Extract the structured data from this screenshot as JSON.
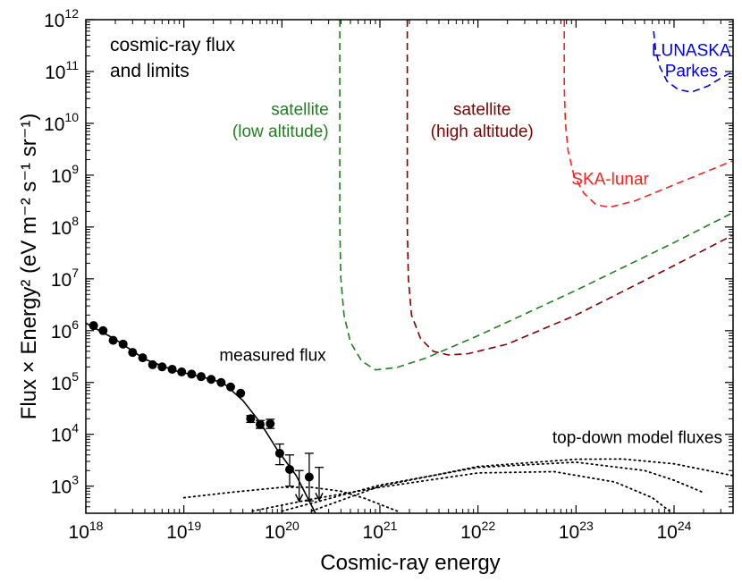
{
  "chart_data": {
    "type": "line",
    "title": "cosmic-ray flux and limits",
    "title_lines": [
      "cosmic-ray flux",
      "and limits"
    ],
    "xlabel": "Cosmic-ray energy",
    "ylabel": "Flux × Energy² (eV m⁻² s⁻¹ sr⁻¹)",
    "x_scale": "log",
    "y_scale": "log",
    "xlim": [
      1e+18,
      4e+24
    ],
    "ylim": [
      300,
      1000000000000.0
    ],
    "x_ticks": [
      {
        "base": "10",
        "exp": "18",
        "value": 1e+18
      },
      {
        "base": "10",
        "exp": "19",
        "value": 1e+19
      },
      {
        "base": "10",
        "exp": "20",
        "value": 1e+20
      },
      {
        "base": "10",
        "exp": "21",
        "value": 1e+21
      },
      {
        "base": "10",
        "exp": "22",
        "value": 1e+22
      },
      {
        "base": "10",
        "exp": "23",
        "value": 1e+23
      },
      {
        "base": "10",
        "exp": "24",
        "value": 1e+24
      }
    ],
    "y_ticks": [
      {
        "base": "10",
        "exp": "3",
        "value": 1000.0
      },
      {
        "base": "10",
        "exp": "4",
        "value": 10000.0
      },
      {
        "base": "10",
        "exp": "5",
        "value": 100000.0
      },
      {
        "base": "10",
        "exp": "6",
        "value": 1000000.0
      },
      {
        "base": "10",
        "exp": "7",
        "value": 10000000.0
      },
      {
        "base": "10",
        "exp": "8",
        "value": 100000000.0
      },
      {
        "base": "10",
        "exp": "9",
        "value": 1000000000.0
      },
      {
        "base": "10",
        "exp": "10",
        "value": 10000000000.0
      },
      {
        "base": "10",
        "exp": "11",
        "value": 100000000000.0
      },
      {
        "base": "10",
        "exp": "12",
        "value": 1000000000000.0
      }
    ],
    "measured_flux": {
      "name": "measured flux",
      "color": "#000000",
      "points": [
        {
          "x": 1.2e+18,
          "y": 1250000.0
        },
        {
          "x": 1.5e+18,
          "y": 1000000.0
        },
        {
          "x": 1.9e+18,
          "y": 650000.0
        },
        {
          "x": 2.4e+18,
          "y": 550000.0
        },
        {
          "x": 3e+18,
          "y": 380000.0
        },
        {
          "x": 3.8e+18,
          "y": 300000.0
        },
        {
          "x": 4.8e+18,
          "y": 220000.0
        },
        {
          "x": 6e+18,
          "y": 200000.0
        },
        {
          "x": 7.6e+18,
          "y": 180000.0
        },
        {
          "x": 9.5e+18,
          "y": 160000.0
        },
        {
          "x": 1.2e+19,
          "y": 145000.0
        },
        {
          "x": 1.5e+19,
          "y": 130000.0
        },
        {
          "x": 1.9e+19,
          "y": 115000.0
        },
        {
          "x": 2.4e+19,
          "y": 100000.0
        },
        {
          "x": 3e+19,
          "y": 82000.0
        },
        {
          "x": 3.8e+19,
          "y": 62000.0
        },
        {
          "x": 4.8e+19,
          "y": 20000.0,
          "err_low": 17000.0,
          "err_high": 23000.0
        },
        {
          "x": 6e+19,
          "y": 15500.0,
          "err_low": 13000.0,
          "err_high": 18500.0
        },
        {
          "x": 7.6e+19,
          "y": 16000.0,
          "err_low": 13000.0,
          "err_high": 19500.0
        },
        {
          "x": 9.5e+19,
          "y": 4300.0,
          "err_low": 2600.0,
          "err_high": 6500.0
        },
        {
          "x": 1.2e+20,
          "y": 2100.0,
          "err_low": 1000.0,
          "err_high": 4000.0
        },
        {
          "x": 1.9e+20,
          "y": 1500.0,
          "err_low": 520,
          "err_high": 4300.0
        }
      ],
      "upper_limits": [
        {
          "x": 1.5e+20,
          "y": 2000.0,
          "y_end": 530
        },
        {
          "x": 2.4e+20,
          "y": 2300.0,
          "y_end": 560
        }
      ],
      "fit": [
        {
          "x": 1e+18,
          "y": 1400000.0
        },
        {
          "x": 2e+18,
          "y": 680000.0
        },
        {
          "x": 4e+18,
          "y": 280000.0
        },
        {
          "x": 8e+18,
          "y": 170000.0
        },
        {
          "x": 1.6e+19,
          "y": 125000.0
        },
        {
          "x": 2.5e+19,
          "y": 100000.0
        },
        {
          "x": 4e+19,
          "y": 45000.0
        },
        {
          "x": 6e+19,
          "y": 17000.0
        },
        {
          "x": 9e+19,
          "y": 5000.0
        },
        {
          "x": 1.4e+20,
          "y": 1600.0
        },
        {
          "x": 2.2e+20,
          "y": 300
        }
      ]
    },
    "limits": [
      {
        "name": "satellite (low altitude)",
        "label_lines": [
          "satellite",
          "(low altitude)"
        ],
        "label_anchor": "end",
        "label_position": {
          "x": 3e+20,
          "y_lines": [
            14500000000.0,
            5500000000.0
          ]
        },
        "color": "#208020",
        "points": [
          {
            "x": 3.9e+20,
            "y": 1000000000000.0
          },
          {
            "x": 3.9e+20,
            "y": 100000000.0
          },
          {
            "x": 4e+20,
            "y": 10000000.0
          },
          {
            "x": 4.3e+20,
            "y": 2000000.0
          },
          {
            "x": 5e+20,
            "y": 600000.0
          },
          {
            "x": 6.5e+20,
            "y": 260000.0
          },
          {
            "x": 9e+20,
            "y": 175000.0
          },
          {
            "x": 1.5e+21,
            "y": 195000.0
          },
          {
            "x": 3e+21,
            "y": 300000.0
          },
          {
            "x": 1e+22,
            "y": 800000.0
          },
          {
            "x": 1e+23,
            "y": 6000000.0
          },
          {
            "x": 1e+24,
            "y": 50000000.0
          },
          {
            "x": 4e+24,
            "y": 190000000.0
          }
        ]
      },
      {
        "name": "satellite (high altitude)",
        "label_lines": [
          "satellite",
          "(high altitude)"
        ],
        "label_anchor": "middle",
        "label_position": {
          "x": 1.1e+22,
          "y_lines": [
            14500000000.0,
            5500000000.0
          ]
        },
        "color": "#800000",
        "points": [
          {
            "x": 1.9e+21,
            "y": 1000000000000.0
          },
          {
            "x": 1.9e+21,
            "y": 100000000.0
          },
          {
            "x": 1.95e+21,
            "y": 10000000.0
          },
          {
            "x": 2.1e+21,
            "y": 2000000.0
          },
          {
            "x": 2.6e+21,
            "y": 700000.0
          },
          {
            "x": 3.5e+21,
            "y": 400000.0
          },
          {
            "x": 5e+21,
            "y": 340000.0
          },
          {
            "x": 8e+21,
            "y": 360000.0
          },
          {
            "x": 2e+22,
            "y": 550000.0
          },
          {
            "x": 1e+23,
            "y": 2000000.0
          },
          {
            "x": 1e+24,
            "y": 18000000.0
          },
          {
            "x": 4e+24,
            "y": 70000000.0
          }
        ]
      },
      {
        "name": "SKA-lunar",
        "label_lines": [
          "SKA-lunar"
        ],
        "label_anchor": "start",
        "label_position": {
          "x": 9e+22,
          "y_lines": [
            650000000.0
          ]
        },
        "color": "#ff2020",
        "points": [
          {
            "x": 7.6e+22,
            "y": 1000000000000.0
          },
          {
            "x": 7.6e+22,
            "y": 50000000000.0
          },
          {
            "x": 7.8e+22,
            "y": 10000000000.0
          },
          {
            "x": 8.3e+22,
            "y": 3000000000.0
          },
          {
            "x": 9.5e+22,
            "y": 1000000000.0
          },
          {
            "x": 1.2e+23,
            "y": 450000000.0
          },
          {
            "x": 1.6e+23,
            "y": 270000000.0
          },
          {
            "x": 2.2e+23,
            "y": 240000000.0
          },
          {
            "x": 4e+23,
            "y": 320000000.0
          },
          {
            "x": 1e+24,
            "y": 650000000.0
          },
          {
            "x": 4e+24,
            "y": 1900000000.0
          }
        ]
      },
      {
        "name": "LUNASKA Parkes",
        "label_lines": [
          "LUNASKA",
          "Parkes"
        ],
        "label_anchor": "middle",
        "label_position": {
          "x": 1.5e+24,
          "y_lines": [
            200000000000.0,
            80000000000.0
          ]
        },
        "color": "#0000ee",
        "points": [
          {
            "x": 6.2e+23,
            "y": 600000000000.0
          },
          {
            "x": 6.5e+23,
            "y": 250000000000.0
          },
          {
            "x": 7.2e+23,
            "y": 120000000000.0
          },
          {
            "x": 8.5e+23,
            "y": 65000000000.0
          },
          {
            "x": 1.1e+24,
            "y": 45000000000.0
          },
          {
            "x": 1.5e+24,
            "y": 40000000000.0
          },
          {
            "x": 2.2e+24,
            "y": 52000000000.0
          },
          {
            "x": 3.2e+24,
            "y": 80000000000.0
          },
          {
            "x": 4e+24,
            "y": 100000000000.0
          }
        ]
      }
    ],
    "model_label": "top-down model fluxes",
    "model_label_position": {
      "x": 4e+24,
      "y": 6800.0
    },
    "models": [
      {
        "name": "model 1",
        "points": [
          {
            "x": 1e+19,
            "y": 600
          },
          {
            "x": 3e+19,
            "y": 760
          },
          {
            "x": 1e+20,
            "y": 950
          },
          {
            "x": 2e+20,
            "y": 950
          },
          {
            "x": 4e+20,
            "y": 800
          },
          {
            "x": 7e+20,
            "y": 580
          },
          {
            "x": 1.5e+21,
            "y": 330
          }
        ]
      },
      {
        "name": "model 2",
        "points": [
          {
            "x": 5e+19,
            "y": 330
          },
          {
            "x": 2e+20,
            "y": 560
          },
          {
            "x": 1e+21,
            "y": 950
          },
          {
            "x": 1e+22,
            "y": 1800
          },
          {
            "x": 6e+22,
            "y": 1900
          },
          {
            "x": 2.5e+23,
            "y": 1200
          },
          {
            "x": 6e+23,
            "y": 600
          },
          {
            "x": 9e+23,
            "y": 330
          }
        ]
      },
      {
        "name": "model 3",
        "points": [
          {
            "x": 1e+20,
            "y": 330
          },
          {
            "x": 1e+21,
            "y": 1050
          },
          {
            "x": 1e+22,
            "y": 2300
          },
          {
            "x": 1e+23,
            "y": 2900
          },
          {
            "x": 5e+23,
            "y": 2000
          },
          {
            "x": 1e+24,
            "y": 1300
          },
          {
            "x": 2e+24,
            "y": 750
          }
        ]
      },
      {
        "name": "model 4",
        "points": [
          {
            "x": 2e+20,
            "y": 330
          },
          {
            "x": 1e+21,
            "y": 1000
          },
          {
            "x": 1e+22,
            "y": 2400
          },
          {
            "x": 1e+23,
            "y": 3300
          },
          {
            "x": 3e+23,
            "y": 3350
          },
          {
            "x": 1e+24,
            "y": 2700
          },
          {
            "x": 4e+24,
            "y": 1600
          }
        ]
      }
    ]
  }
}
